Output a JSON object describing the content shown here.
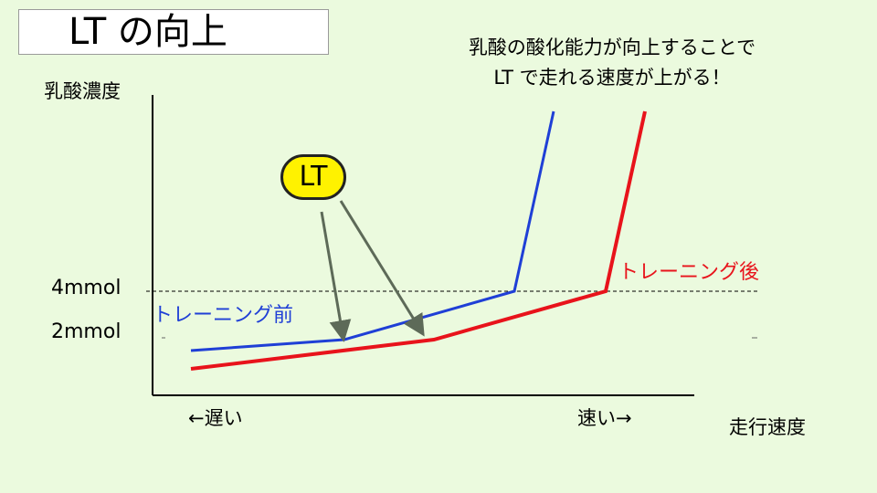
{
  "title": "LT の向上",
  "message": {
    "line1": "乳酸の酸化能力が向上することで",
    "line2": "LT で走れる速度が上がる！"
  },
  "axes": {
    "y_label": "乳酸濃度",
    "x_label": "走行速度",
    "y_tick_4": "4mmol",
    "y_tick_2": "2mmol",
    "x_slow": "←遅い",
    "x_fast": "速い→"
  },
  "lt_badge": "LT",
  "series": {
    "before": {
      "label": "トレーニング前",
      "color": "#1f3fd6"
    },
    "after": {
      "label": "トレーニング後",
      "color": "#e8131b"
    }
  },
  "arrow_color": "#5d6a58"
}
